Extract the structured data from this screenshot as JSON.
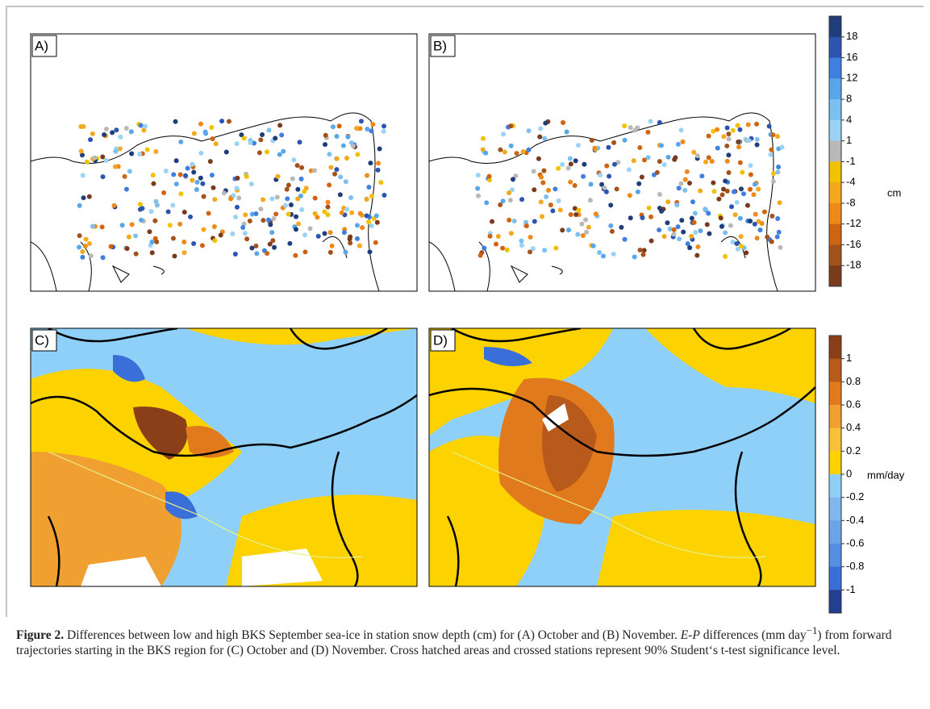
{
  "figure": {
    "panels": [
      {
        "label": "A)"
      },
      {
        "label": "B)"
      },
      {
        "label": "C)"
      },
      {
        "label": "D)"
      }
    ],
    "colorbars": [
      {
        "unit": "cm",
        "ticks": [
          18,
          16,
          12,
          8,
          4,
          1,
          -1,
          -4,
          -8,
          -12,
          -16,
          -18
        ],
        "colors": [
          "#1f3d7a",
          "#2b55b0",
          "#3f7fe0",
          "#5aa6ea",
          "#7cc0f2",
          "#9ad3f6",
          "#b9b9b9",
          "#f2c100",
          "#f4a81d",
          "#ef8a1a",
          "#cf6512",
          "#a4511c",
          "#7a3b1c"
        ]
      },
      {
        "unit": "mm/day",
        "ticks": [
          1,
          0.8,
          0.6,
          0.4,
          0.2,
          0,
          -0.2,
          -0.4,
          -0.6,
          -0.8,
          -1
        ],
        "colors": [
          "#8a3f18",
          "#b85a1c",
          "#e07a1c",
          "#f0a030",
          "#f7c23a",
          "#fcd200",
          "#8fd0f8",
          "#7fb8ee",
          "#6ca4e8",
          "#568ee4",
          "#3a6ed8",
          "#223f92"
        ]
      }
    ],
    "caption": {
      "parts": [
        "Figure 2.",
        " Differences between low and high BKS September sea-ice in station snow depth (cm) for (A) October and (B) November. ",
        "E-P",
        " differences (mm day",
        "−1",
        ") from forward trajectories starting in the BKS region for (C) October and (D) November. Cross hatched areas and crossed stations represent 90% Student‘s t-test significance level."
      ]
    }
  }
}
